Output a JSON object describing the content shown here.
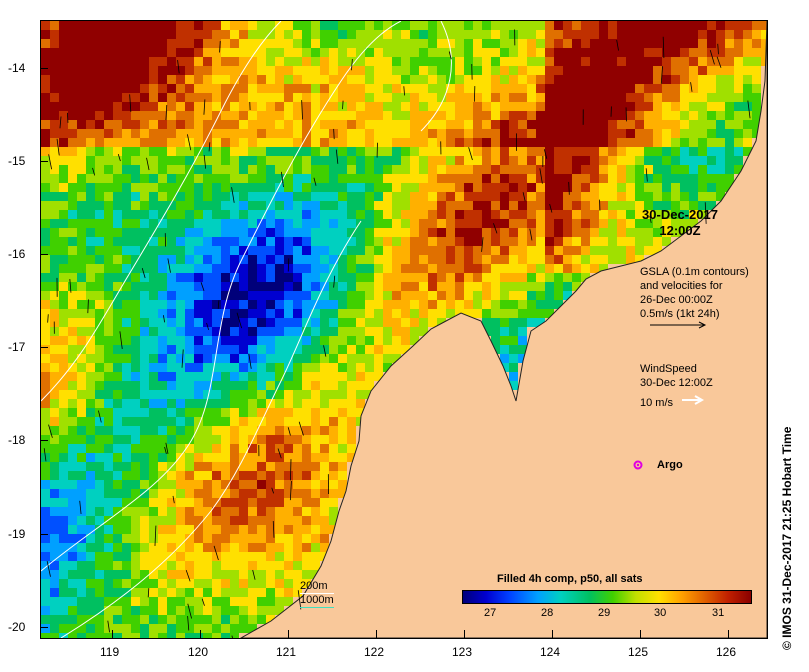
{
  "map": {
    "date_title_line1": "30-Dec-2017",
    "date_title_line2": "12:00Z",
    "gsla_lines": [
      "GSLA (0.1m contours)",
      "and velocities for",
      "26-Dec 00:00Z",
      "0.5m/s (1kt 24h)"
    ],
    "wind_lines": [
      "WindSpeed",
      "30-Dec 12:00Z",
      "10 m/s"
    ],
    "argo_label": "Argo",
    "depth_200": "200m",
    "depth_1000": "1000m",
    "colorbar_title": "Filled 4h comp, p50, all sats",
    "colorbar_ticks": [
      "27",
      "28",
      "29",
      "30",
      "31"
    ],
    "credit": "© IMOS 31-Dec-2017 21:25 Hobart Time",
    "x_ticks": [
      "119",
      "120",
      "121",
      "122",
      "123",
      "124",
      "125",
      "126"
    ],
    "y_ticks": [
      "-14",
      "-15",
      "-16",
      "-17",
      "-18",
      "-19",
      "-20"
    ],
    "colors": {
      "land": "#f9c89a",
      "argo": "#e000e0",
      "contour": "#ffffff",
      "shelf_1000": "#40e0c0"
    }
  }
}
